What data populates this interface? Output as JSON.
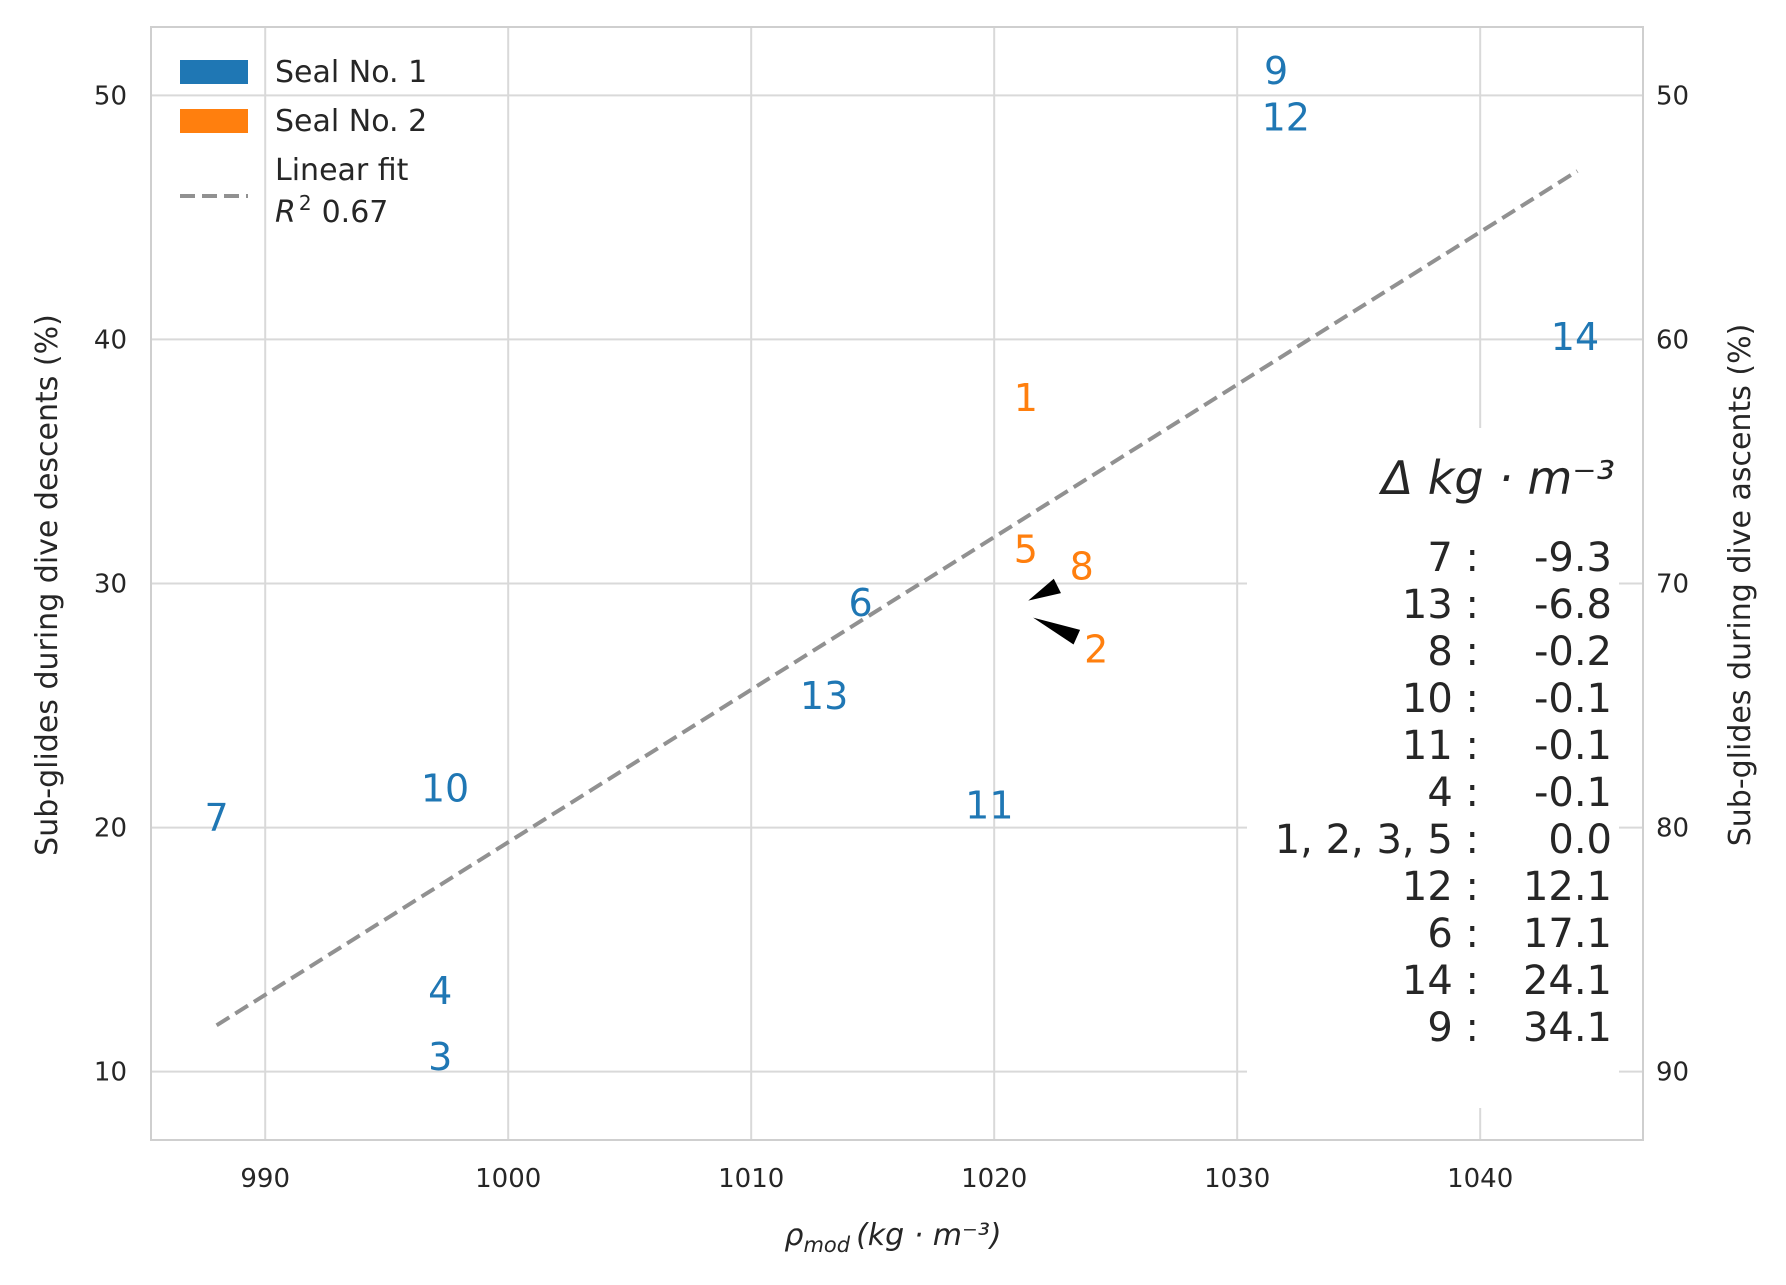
{
  "chart_data": {
    "type": "scatter",
    "xlabel": "ρ",
    "xlabel_sub": "mod",
    "xlabel_units": "(kg · m⁻³)",
    "ylabel": "Sub-glides during dive descents (%)",
    "ylabel_right": "Sub-glides during dive ascents (%)",
    "xlim": [
      985.3,
      1046.7
    ],
    "ylim": [
      7.2,
      52.8
    ],
    "xticks": [
      "990",
      "1000",
      "1010",
      "1020",
      "1030",
      "1040"
    ],
    "yticks": [
      "10",
      "20",
      "30",
      "40",
      "50"
    ],
    "yticks_right": [
      "90",
      "80",
      "70",
      "60",
      "50"
    ],
    "grid": true,
    "legend_placement": "top-left",
    "colors": {
      "seal1": "#1f77b4",
      "seal2": "#ff7f0e",
      "fit": "#919191"
    },
    "series": [
      {
        "name": "Seal No. 1",
        "color": "#1f77b4",
        "points": [
          {
            "label": "9",
            "x": 1031.6,
            "y": 51.0
          },
          {
            "label": "12",
            "x": 1032.0,
            "y": 49.1
          },
          {
            "label": "14",
            "x": 1043.9,
            "y": 40.1
          },
          {
            "label": "6",
            "x": 1014.5,
            "y": 29.2
          },
          {
            "label": "13",
            "x": 1013.0,
            "y": 25.4
          },
          {
            "label": "10",
            "x": 997.4,
            "y": 21.6
          },
          {
            "label": "11",
            "x": 1019.8,
            "y": 20.9
          },
          {
            "label": "7",
            "x": 988.0,
            "y": 20.4
          },
          {
            "label": "4",
            "x": 997.2,
            "y": 13.3
          },
          {
            "label": "3",
            "x": 997.2,
            "y": 10.6
          }
        ]
      },
      {
        "name": "Seal No. 2",
        "color": "#ff7f0e",
        "points": [
          {
            "label": "1",
            "x": 1021.3,
            "y": 37.6
          },
          {
            "label": "5",
            "x": 1021.3,
            "y": 31.4
          },
          {
            "label": "8",
            "x": 1023.6,
            "y": 30.7
          },
          {
            "label": "2",
            "x": 1024.2,
            "y": 27.3
          }
        ]
      }
    ],
    "fit": {
      "name": "Linear fit",
      "r2_label": "R",
      "r2_sup": "2",
      "r2_value": "0.67",
      "x": [
        988.0,
        1044.0
      ],
      "y": [
        11.9,
        46.9
      ]
    },
    "arrows": [
      {
        "tip": [
          1021.4,
          29.3
        ],
        "tail": [
          1022.6,
          29.9
        ]
      },
      {
        "tip": [
          1021.6,
          28.6
        ],
        "tail": [
          1023.4,
          27.8
        ]
      }
    ],
    "delta_table": {
      "title": "Δ kg · m⁻³",
      "rows": [
        {
          "ids": "7 :",
          "value": "-9.3"
        },
        {
          "ids": "13 :",
          "value": "-6.8"
        },
        {
          "ids": "8 :",
          "value": "-0.2"
        },
        {
          "ids": "10 :",
          "value": "-0.1"
        },
        {
          "ids": "11 :",
          "value": "-0.1"
        },
        {
          "ids": "4 :",
          "value": "-0.1"
        },
        {
          "ids": "1, 2, 3, 5 :",
          "value": "0.0"
        },
        {
          "ids": "12 :",
          "value": "12.1"
        },
        {
          "ids": "6 :",
          "value": "17.1"
        },
        {
          "ids": "14 :",
          "value": "24.1"
        },
        {
          "ids": "9 :",
          "value": "34.1"
        }
      ]
    }
  }
}
